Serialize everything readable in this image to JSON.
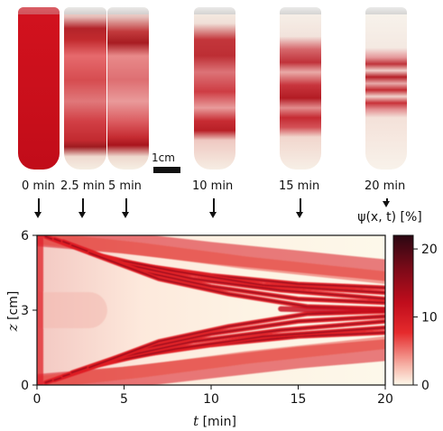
{
  "scale_bar": {
    "label": "1cm"
  },
  "photos": [
    {
      "time_label": "0 min"
    },
    {
      "time_label": "2.5 min"
    },
    {
      "time_label": "5 min"
    },
    {
      "time_label": "10 min"
    },
    {
      "time_label": "15 min"
    },
    {
      "time_label": "20 min"
    }
  ],
  "colorbar": {
    "label": "ψ(x, t) [%]",
    "ticks": [
      "20",
      "10",
      "0"
    ],
    "range": [
      0,
      22
    ],
    "colors": [
      "#fdf8ea",
      "#e7141f",
      "#2b0712"
    ]
  },
  "chart_data": {
    "type": "heatmap",
    "xlabel": "t [min]",
    "ylabel": "z [cm]",
    "xlim": [
      0,
      20
    ],
    "ylim": [
      0,
      6
    ],
    "xticks": [
      "0",
      "5",
      "10",
      "15",
      "20"
    ],
    "yticks": [
      "0",
      "3",
      "6"
    ],
    "value_range": [
      0,
      22
    ]
  }
}
